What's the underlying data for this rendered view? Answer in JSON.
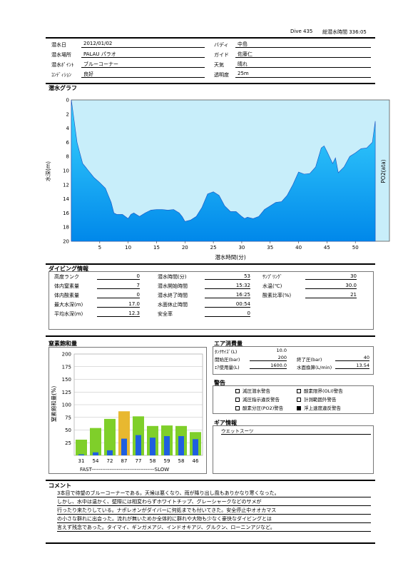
{
  "header": {
    "dive_no": "Dive 435",
    "total_label": "総潜水時間 336:05"
  },
  "info": {
    "date_label": "潜水日",
    "date": "2012/01/02",
    "place_label": "潜水場所",
    "place": "PALAU パラオ",
    "point_label": "潜水ﾎﾟｲﾝﾄ",
    "point": "ブルーコーナー",
    "cond_label": "ｺﾝﾃﾞｨｼｮﾝ",
    "cond": "良好",
    "buddy_label": "バディ",
    "buddy": "中島",
    "guide_label": "ガイド",
    "guide": "佐藤仁",
    "weather_label": "天気",
    "weather": "晴れ",
    "vis_label": "透明度",
    "vis": "25m"
  },
  "graph_title": "潜水グラフ",
  "chart_data": {
    "type": "area",
    "xlabel": "潜水時間(分)",
    "ylabel": "水深(m)",
    "y2label": "PO2(ata)",
    "xlim": [
      0,
      56
    ],
    "ylim": [
      0,
      20
    ],
    "x_ticks": [
      "5",
      "10",
      "15",
      "20",
      "25",
      "30",
      "35",
      "40",
      "45",
      "50"
    ],
    "y_ticks": [
      "0",
      "2",
      "4",
      "6",
      "8",
      "10",
      "12",
      "14",
      "16",
      "18",
      "20"
    ],
    "y2_ticks": [
      "0.21",
      "0.25",
      "0.29",
      "0.34",
      "0.38",
      "0.42",
      "0.46",
      "0.50",
      "0.55",
      "0.59",
      "0.63"
    ],
    "x": [
      0,
      0.5,
      1,
      1.5,
      2,
      2.5,
      3,
      4,
      5,
      6,
      6.5,
      7,
      7.5,
      8,
      9,
      10,
      10.5,
      11,
      12,
      13,
      14,
      15,
      16,
      17,
      18,
      19,
      19.5,
      20,
      21,
      22,
      23,
      24,
      25,
      26,
      27,
      28,
      29,
      30,
      30.5,
      31,
      32,
      33,
      34,
      35,
      36,
      37,
      38,
      39,
      40,
      41,
      42,
      43,
      44,
      44.5,
      45,
      46,
      46.5,
      47,
      48,
      49,
      50,
      51,
      52,
      53,
      53.5
    ],
    "depth": [
      0,
      3,
      6,
      7.5,
      9,
      9.5,
      10,
      11,
      11.7,
      12.5,
      13.5,
      14.5,
      16,
      16.2,
      16.2,
      16.8,
      16.2,
      16,
      16.5,
      16,
      15.6,
      15.5,
      15.5,
      15.6,
      15.5,
      16,
      16.5,
      17.2,
      17,
      16.5,
      15.2,
      13.3,
      13,
      13.5,
      15,
      15.8,
      15.8,
      16.5,
      16.8,
      16.6,
      16.8,
      16.5,
      15.5,
      15,
      14.5,
      14.4,
      13.5,
      12,
      10.2,
      10.5,
      10.4,
      9.5,
      6.8,
      6.5,
      7.3,
      9,
      8.2,
      10.3,
      9.5,
      8,
      7.5,
      6.9,
      6.8,
      6,
      3
    ]
  },
  "diving_info": {
    "title": "ダイビング情報",
    "rows": [
      {
        "l1": "高度ランク",
        "v1": "0",
        "l2": "潜水時間(分)",
        "v2": "53",
        "l3": "ｻﾝﾌﾟﾘﾝｸﾞ",
        "v3": "30"
      },
      {
        "l1": "体内窒素量",
        "v1": "7",
        "l2": "潜水開始時間",
        "v2": "15:32",
        "l3": "水温(℃)",
        "v3": "30.0"
      },
      {
        "l1": "体内酸素量",
        "v1": "0",
        "l2": "潜水終了時間",
        "v2": "16:25",
        "l3": "酸素比率(%)",
        "v3": "21"
      },
      {
        "l1": "最大水深(m)",
        "v1": "17.0",
        "l2": "水面休止時間",
        "v2": "00:54",
        "l3": "",
        "v3": ""
      },
      {
        "l1": "平均水深(m)",
        "v1": "12.3",
        "l2": "安全率",
        "v2": "0",
        "l3": "",
        "v3": ""
      }
    ]
  },
  "nitrogen": {
    "title": "窒素飽和量",
    "ylabel": "窒素飽和量(%)",
    "fast_slow": "FAST-----------------------------------SLOW",
    "chart_data": {
      "type": "bar",
      "categories": [
        "31",
        "54",
        "72",
        "87",
        "77",
        "58",
        "59",
        "58",
        "46"
      ],
      "series": [
        {
          "values": [
            31,
            54,
            72,
            87,
            77,
            58,
            59,
            58,
            46
          ],
          "color": "#7fcf2a"
        },
        {
          "values": [
            2,
            6,
            10,
            33,
            40,
            35,
            38,
            38,
            32
          ],
          "color": "#1f5fe0"
        }
      ],
      "ylim": [
        0,
        200
      ],
      "y_ticks": [
        "200",
        "175",
        "150",
        "125",
        "100",
        "75",
        "50",
        "25"
      ]
    }
  },
  "air": {
    "title": "エア消費量",
    "tank_label": "ﾀﾝｸｻｲｽﾞ(L)",
    "tank": "10.0",
    "start_label": "開始圧(bar)",
    "start": "200",
    "end_label": "終了圧(bar)",
    "end": "40",
    "used_label": "ｴｱ使用量(L)",
    "used": "1600.0",
    "surface_label": "水面換算(L/min)",
    "surface": "13.54"
  },
  "warnings": {
    "title": "警告",
    "items": [
      {
        "label": "減圧潜水警告",
        "on": false
      },
      {
        "label": "酸素限界(OLI)警告",
        "on": false
      },
      {
        "label": "減圧指示違反警告",
        "on": false
      },
      {
        "label": "計測範囲外警告",
        "on": false
      },
      {
        "label": "酸素分圧(PO2)警告",
        "on": false
      },
      {
        "label": "浮上速度違反警告",
        "on": true
      }
    ]
  },
  "gear": {
    "title": "ギア情報",
    "item": "ウエットスーツ"
  },
  "comment": {
    "title": "コメント",
    "lines": [
      "3本目で待望のブルーコーナーである。天候は悪くなり、雨が降り出し風もありかなり寒くなった。",
      "しかし、水中は温かく、壁際には相変わらずホワイトチップ、グレーシャークなどのサメが",
      "行ったり来たりしている。ナポレオンがダイバーに何処までも付いてきた。安全停止中オオカマス",
      "の小さな群れに出会った。流れが無いためか全体的に群れや大物も少なく豪快なダイビングとは",
      "言えず残念であった。タイマイ、ギンガメアジ、インドオキアジ、グルクン、ローニンアジなど。"
    ]
  }
}
